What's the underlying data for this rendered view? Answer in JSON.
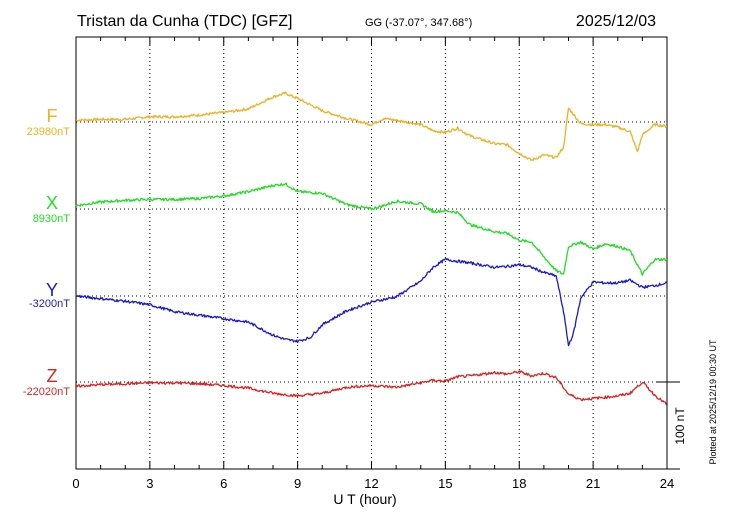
{
  "header": {
    "station": "Tristan da Cunha (TDC)  [GFZ]",
    "coords": "GG (-37.07°, 347.68°)",
    "date": "2025/12/03"
  },
  "footer": {
    "plotted": "Plotted at 2025/12/19 00:30 UT"
  },
  "chart_data": {
    "type": "line",
    "title": "Tristan da Cunha (TDC)  [GFZ]",
    "xlabel": "U T (hour)",
    "ylabel": "",
    "xlim": [
      0,
      24
    ],
    "x_ticks": [
      0,
      3,
      6,
      9,
      12,
      15,
      18,
      21,
      24
    ],
    "grid": true,
    "scale_bar": {
      "label": "100 nT",
      "value": 100
    },
    "series": [
      {
        "name": "F",
        "baseline_label": "23980nT",
        "color": "#f0b020",
        "x": [
          0,
          1,
          2,
          3,
          4,
          5,
          6,
          7,
          8,
          8.5,
          9,
          10,
          11,
          12,
          12.5,
          13,
          14,
          14.5,
          15,
          15.5,
          16,
          17,
          17.5,
          18,
          18.5,
          19,
          19.5,
          19.8,
          20,
          20.5,
          21,
          21.5,
          22,
          22.5,
          22.8,
          23,
          23.5,
          24
        ],
        "y": [
          2,
          3,
          3,
          6,
          6,
          8,
          11,
          15,
          29,
          33,
          27,
          13,
          4,
          -3,
          4,
          2,
          -3,
          -10,
          -12,
          -7,
          -16,
          -25,
          -26,
          -36,
          -44,
          -38,
          -41,
          -29,
          16,
          -2,
          -3,
          -3,
          -6,
          -11,
          -34,
          -15,
          -3,
          -5
        ]
      },
      {
        "name": "X",
        "baseline_label": "8930nT",
        "color": "#22dd22",
        "x": [
          0,
          1,
          2,
          3,
          4,
          5,
          6,
          7,
          8,
          8.5,
          9,
          10,
          11,
          12,
          12.5,
          13,
          14,
          14.5,
          15,
          15.5,
          16,
          17,
          17.5,
          18,
          18.5,
          19,
          19.5,
          19.8,
          20,
          20.5,
          21,
          21.5,
          22,
          22.5,
          23,
          23.5,
          24
        ],
        "y": [
          4,
          8,
          10,
          11,
          11,
          12,
          15,
          20,
          27,
          29,
          20,
          18,
          5,
          0,
          4,
          9,
          6,
          -3,
          -2,
          -4,
          -18,
          -26,
          -28,
          -36,
          -38,
          -55,
          -71,
          -75,
          -43,
          -38,
          -46,
          -40,
          -43,
          -48,
          -75,
          -58,
          -58
        ]
      },
      {
        "name": "Y",
        "baseline_label": "-3200nT",
        "color": "#1a1acc",
        "x": [
          0,
          1,
          2,
          3,
          4,
          5,
          6,
          7,
          8,
          8.5,
          9,
          9.5,
          10,
          11,
          12,
          13,
          14,
          14.5,
          15,
          16,
          17,
          17.5,
          18,
          18.5,
          19,
          19.5,
          19.8,
          20,
          20.2,
          20.5,
          21,
          21.5,
          22,
          22.5,
          23,
          23.5,
          24
        ],
        "y": [
          0,
          -3,
          -6,
          -10,
          -18,
          -22,
          -26,
          -30,
          -45,
          -50,
          -52,
          -48,
          -33,
          -17,
          -7,
          -1,
          17,
          33,
          42,
          38,
          33,
          34,
          36,
          33,
          27,
          23,
          -18,
          -57,
          -43,
          -2,
          16,
          15,
          15,
          18,
          10,
          12,
          15
        ]
      },
      {
        "name": "Z",
        "baseline_label": "-22020nT",
        "color": "#dd2222",
        "x": [
          0,
          1,
          2,
          3,
          4,
          5,
          6,
          7,
          8,
          9,
          10,
          11,
          12,
          13,
          14,
          14.5,
          15,
          15.5,
          16,
          17,
          17.5,
          18,
          18.5,
          19,
          19.5,
          20,
          20.5,
          21,
          22,
          22.5,
          23,
          23.5,
          24
        ],
        "y": [
          -5,
          -3,
          -2,
          -1,
          -1,
          -2,
          -4,
          -7,
          -13,
          -16,
          -13,
          -6,
          -4,
          -6,
          -1,
          2,
          1,
          6,
          7,
          11,
          9,
          12,
          7,
          10,
          5,
          -14,
          -20,
          -19,
          -16,
          -13,
          0,
          -15,
          -26
        ]
      }
    ]
  }
}
